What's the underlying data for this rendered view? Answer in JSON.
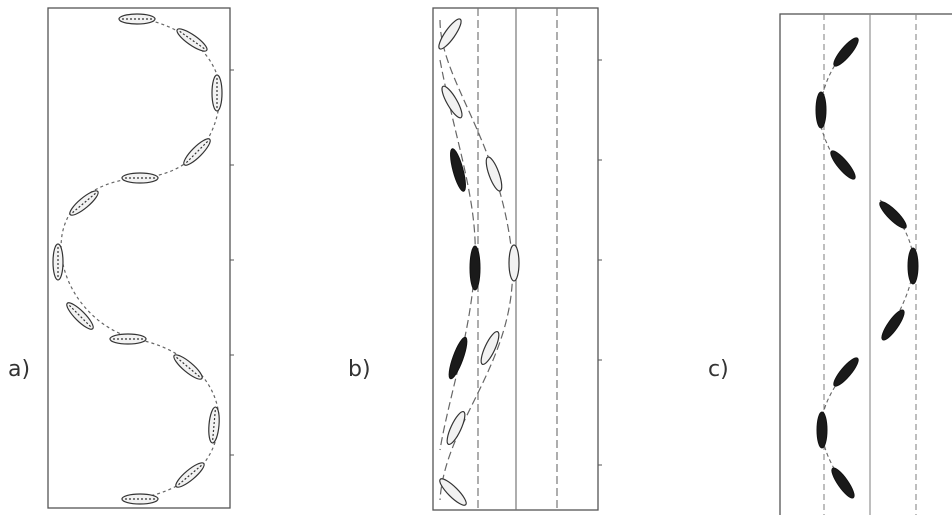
{
  "panels": [
    {
      "id": "a",
      "label": "a)",
      "feather_style": "outline"
    },
    {
      "id": "b",
      "label": "b)",
      "feather_style": "mixed"
    },
    {
      "id": "c",
      "label": "c)",
      "feather_style": "solid"
    }
  ],
  "colors": {
    "frame": "#555555",
    "path": "#666666",
    "feather_outline": "#333333",
    "feather_fill_light": "#f2f2f2",
    "feather_fill_dark": "#1a1a1a",
    "guide_line": "#999999"
  }
}
